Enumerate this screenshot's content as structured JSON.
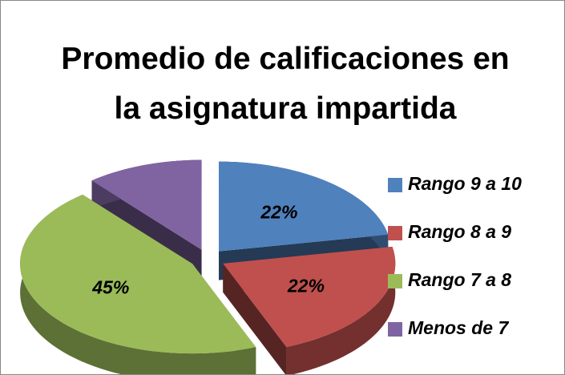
{
  "chart_data": {
    "type": "pie3d",
    "title": "Promedio de calificaciones en la asignatura impartida",
    "categories": [
      "Rango 9 a 10",
      "Rango 8 a 9",
      "Rango 7 a 8",
      "Menos de 7"
    ],
    "values": [
      22,
      22,
      45,
      11
    ],
    "value_labels": [
      "22%",
      "22%",
      "45%",
      null
    ],
    "colors": [
      "#4f81bd",
      "#c0504d",
      "#9bbb59",
      "#8064a2"
    ],
    "legend": "right"
  }
}
